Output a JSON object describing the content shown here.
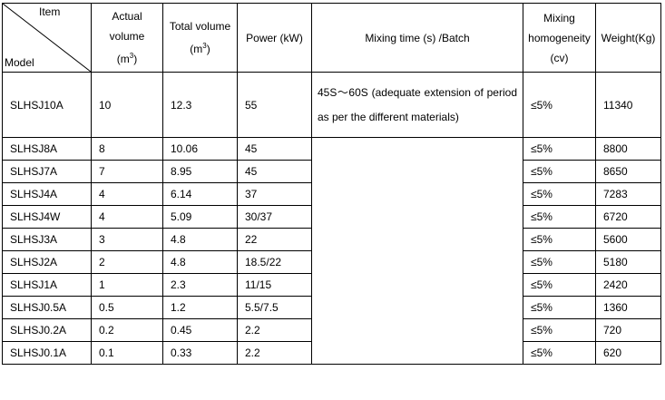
{
  "header": {
    "item": "Item",
    "model": "Model",
    "actual_volume": "Actual volume",
    "actual_volume_unit": "(m",
    "total_volume": "Total volume",
    "total_volume_unit": "(m",
    "unit_exp": "3",
    "unit_close": ")",
    "power": "Power (kW)",
    "mixing_time": "Mixing time (s) /Batch",
    "homogeneity": "Mixing homogeneity",
    "homogeneity_unit": "(cv)",
    "weight": "Weight(Kg)"
  },
  "mixing_note": "45S〜60S (adequate extension of period as per the different materials)",
  "rows": [
    {
      "model": "SLHSJ10A",
      "actual": "10",
      "total": "12.3",
      "power": "55",
      "homog": "≤5%",
      "weight": "11340"
    },
    {
      "model": "SLHSJ8A",
      "actual": "8",
      "total": "10.06",
      "power": "45",
      "homog": "≤5%",
      "weight": "8800"
    },
    {
      "model": "SLHSJ7A",
      "actual": "7",
      "total": "8.95",
      "power": "45",
      "homog": "≤5%",
      "weight": "8650"
    },
    {
      "model": "SLHSJ4A",
      "actual": "4",
      "total": "6.14",
      "power": "37",
      "homog": "≤5%",
      "weight": "7283"
    },
    {
      "model": "SLHSJ4W",
      "actual": "4",
      "total": "5.09",
      "power": "30/37",
      "homog": "≤5%",
      "weight": "6720"
    },
    {
      "model": "SLHSJ3A",
      "actual": "3",
      "total": "4.8",
      "power": "22",
      "homog": "≤5%",
      "weight": "5600"
    },
    {
      "model": "SLHSJ2A",
      "actual": "2",
      "total": "4.8",
      "power": "18.5/22",
      "homog": "≤5%",
      "weight": "5180"
    },
    {
      "model": "SLHSJ1A",
      "actual": "1",
      "total": "2.3",
      "power": "11/15",
      "homog": "≤5%",
      "weight": "2420"
    },
    {
      "model": "SLHSJ0.5A",
      "actual": "0.5",
      "total": "1.2",
      "power": "5.5/7.5",
      "homog": "≤5%",
      "weight": "1360"
    },
    {
      "model": "SLHSJ0.2A",
      "actual": "0.2",
      "total": "0.45",
      "power": "2.2",
      "homog": "≤5%",
      "weight": "720"
    },
    {
      "model": "SLHSJ0.1A",
      "actual": "0.1",
      "total": "0.33",
      "power": "2.2",
      "homog": "≤5%",
      "weight": "620"
    }
  ]
}
